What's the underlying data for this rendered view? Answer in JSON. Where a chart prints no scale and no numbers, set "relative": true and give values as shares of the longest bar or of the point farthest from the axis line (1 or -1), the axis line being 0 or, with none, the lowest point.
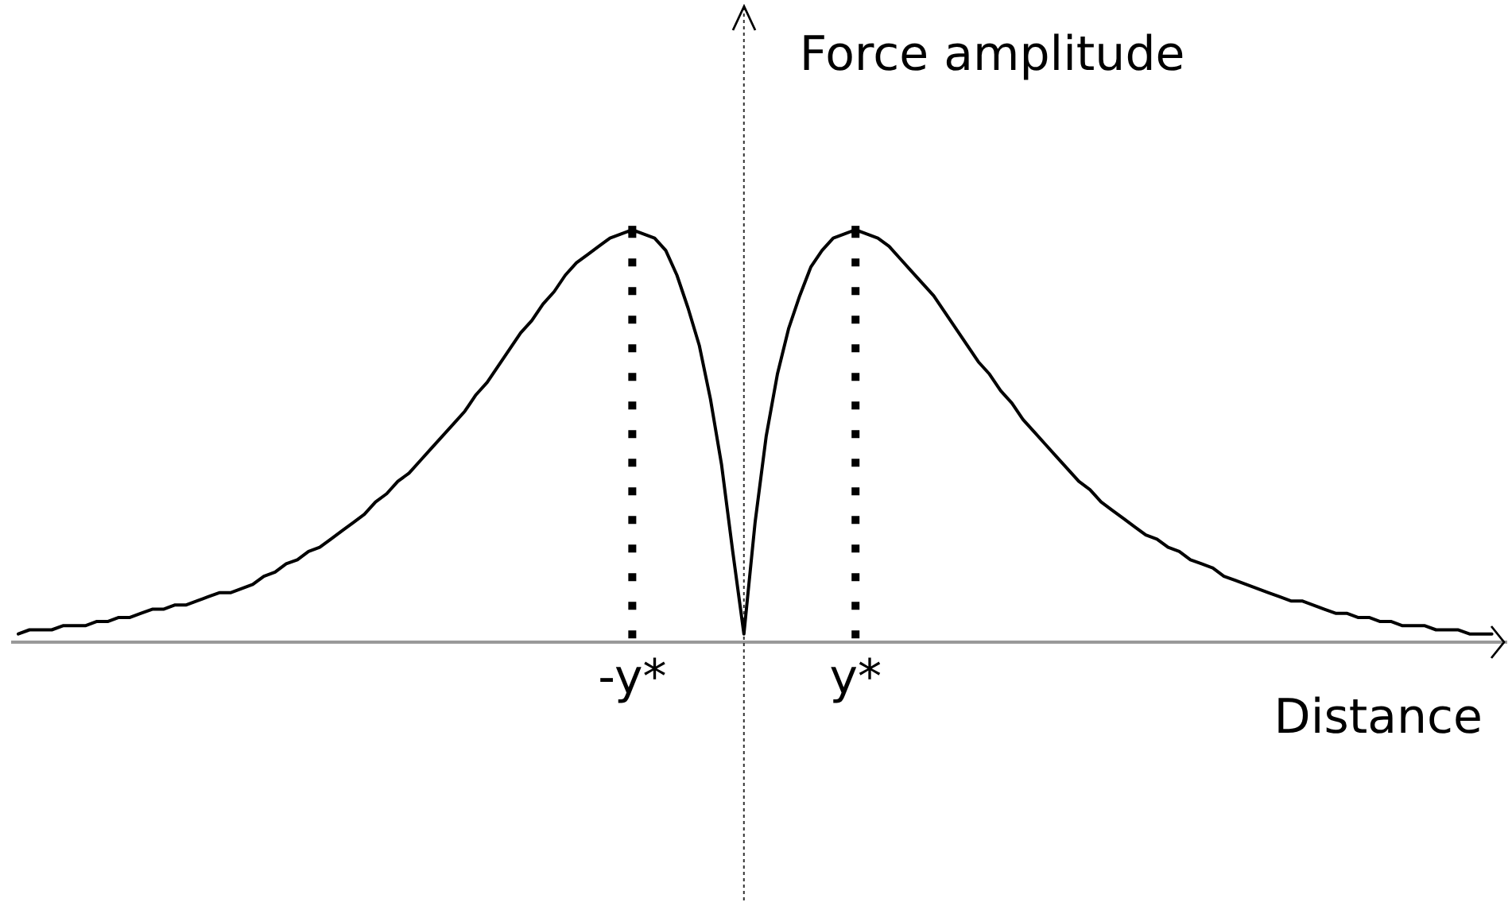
{
  "chart_data": {
    "type": "line",
    "relative": true,
    "xlabel": "Distance",
    "ylabel": "Force amplitude",
    "marker": "none",
    "categories": [
      null,
      null,
      null,
      null,
      null,
      null,
      null,
      null,
      null,
      null,
      null,
      null,
      null,
      null,
      null,
      null,
      null,
      null,
      null,
      null,
      null,
      null,
      null,
      null,
      null,
      null,
      null,
      null,
      null,
      null,
      null,
      null,
      null,
      null,
      null,
      null,
      null,
      null,
      null,
      null,
      null,
      null,
      null,
      null,
      null,
      null,
      null,
      null,
      null,
      null,
      null,
      null,
      null,
      null,
      null,
      "-y*",
      null,
      null,
      null,
      null,
      null,
      null,
      null,
      null,
      null,
      null,
      null,
      null,
      null,
      null,
      null,
      null,
      null,
      null,
      null,
      "y*",
      null,
      null,
      null,
      null,
      null,
      null,
      null,
      null,
      null,
      null,
      null,
      null,
      null,
      null,
      null,
      null,
      null,
      null,
      null,
      null,
      null,
      null,
      null,
      null,
      null,
      null,
      null,
      null,
      null,
      null,
      null,
      null,
      null,
      null,
      null,
      null,
      null,
      null,
      null,
      null,
      null,
      null,
      null,
      null,
      null,
      null,
      null,
      null,
      null,
      null,
      null,
      null,
      null,
      null,
      null,
      null,
      null
    ],
    "series": [
      {
        "color": "#000000",
        "line_style": "solid",
        "values": [
          0.02,
          0.03,
          0.03,
          0.03,
          0.04,
          0.04,
          0.04,
          0.05,
          0.05,
          0.06,
          0.06,
          0.07,
          0.08,
          0.08,
          0.09,
          0.09,
          0.1,
          0.11,
          0.12,
          0.12,
          0.13,
          0.14,
          0.16,
          0.17,
          0.19,
          0.2,
          0.22,
          0.23,
          0.25,
          0.27,
          0.29,
          0.31,
          0.34,
          0.36,
          0.39,
          0.41,
          0.44,
          0.47,
          0.5,
          0.53,
          0.56,
          0.6,
          0.63,
          0.67,
          0.71,
          0.75,
          0.78,
          0.82,
          0.85,
          0.89,
          0.92,
          0.94,
          0.96,
          0.98,
          0.99,
          1,
          0.99,
          0.98,
          0.95,
          0.89,
          0.81,
          0.72,
          0.59,
          0.43,
          0.22,
          0.02,
          0.29,
          0.5,
          0.65,
          0.76,
          0.84,
          0.91,
          0.95,
          0.98,
          0.99,
          1,
          0.99,
          0.98,
          0.96,
          0.93,
          0.9,
          0.87,
          0.84,
          0.8,
          0.76,
          0.72,
          0.68,
          0.65,
          0.61,
          0.58,
          0.54,
          0.51,
          0.48,
          0.45,
          0.42,
          0.39,
          0.37,
          0.34,
          0.32,
          0.3,
          0.28,
          0.26,
          0.25,
          0.23,
          0.22,
          0.2,
          0.19,
          0.18,
          0.16,
          0.15,
          0.14,
          0.13,
          0.12,
          0.11,
          0.1,
          0.1,
          0.09,
          0.08,
          0.07,
          0.07,
          0.06,
          0.06,
          0.05,
          0.05,
          0.04,
          0.04,
          0.04,
          0.03,
          0.03,
          0.03,
          0.02,
          0.02,
          0.02
        ]
      },
      {
        "type": "lollipop",
        "color": "#000000",
        "line_style": "dotted",
        "marker": "square",
        "values": [
          null,
          null,
          null,
          null,
          null,
          null,
          null,
          null,
          null,
          null,
          null,
          null,
          null,
          null,
          null,
          null,
          null,
          null,
          null,
          null,
          null,
          null,
          null,
          null,
          null,
          null,
          null,
          null,
          null,
          null,
          null,
          null,
          null,
          null,
          null,
          null,
          null,
          null,
          null,
          null,
          null,
          null,
          null,
          null,
          null,
          null,
          null,
          null,
          null,
          null,
          null,
          null,
          null,
          null,
          null,
          1,
          null,
          null,
          null,
          null,
          null,
          null,
          null,
          null,
          null,
          null,
          null,
          null,
          null,
          null,
          null,
          null,
          null,
          null,
          null,
          1,
          null,
          null,
          null,
          null,
          null,
          null,
          null,
          null,
          null,
          null,
          null,
          null,
          null,
          null,
          null,
          null,
          null,
          null,
          null,
          null,
          null,
          null,
          null,
          null,
          null,
          null,
          null,
          null,
          null,
          null,
          null,
          null,
          null,
          null,
          null,
          null,
          null,
          null,
          null,
          null,
          null,
          null,
          null,
          null,
          null,
          null,
          null,
          null,
          null,
          null,
          null,
          null,
          null,
          null,
          null,
          null,
          null
        ]
      }
    ]
  }
}
